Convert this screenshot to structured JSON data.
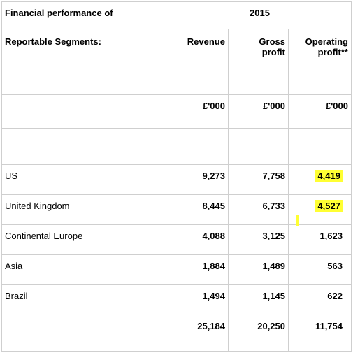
{
  "header": {
    "title_line1": "Financial performance of",
    "title_line2": "Reportable Segments:",
    "year": "2015",
    "col_revenue": "Revenue",
    "col_gross_line1": "Gross",
    "col_gross_line2": "profit",
    "col_operating_line1": "Operating",
    "col_operating_line2": "profit**",
    "unit": "£'000"
  },
  "rows": [
    {
      "segment": "US",
      "revenue": "9,273",
      "gross": "7,758",
      "operating": "4,419",
      "operating_highlighted": true
    },
    {
      "segment": "United Kingdom",
      "revenue": "8,445",
      "gross": "6,733",
      "operating": "4,527",
      "operating_highlighted": true
    },
    {
      "segment": "Continental Europe",
      "revenue": "4,088",
      "gross": "3,125",
      "operating": "1,623",
      "operating_highlighted": false
    },
    {
      "segment": "Asia",
      "revenue": "1,884",
      "gross": "1,489",
      "operating": "563",
      "operating_highlighted": false
    },
    {
      "segment": "Brazil",
      "revenue": "1,494",
      "gross": "1,145",
      "operating": "622",
      "operating_highlighted": false
    }
  ],
  "total": {
    "revenue": "25,184",
    "gross": "20,250",
    "operating": "11,754"
  },
  "highlight_color": "#ffff33"
}
